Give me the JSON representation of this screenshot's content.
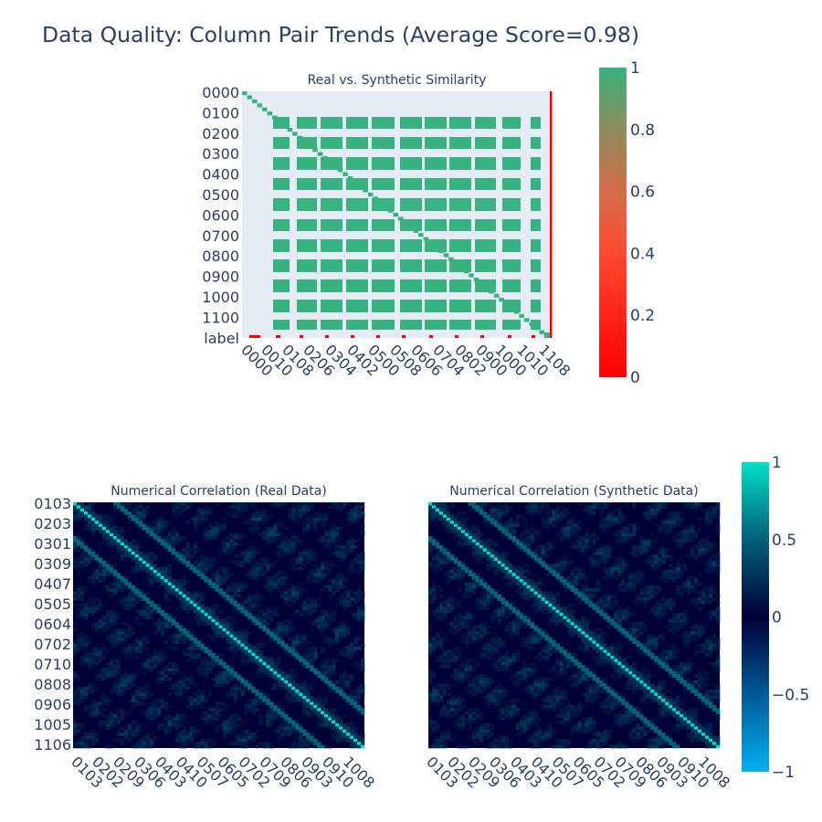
{
  "title": "Data Quality: Column Pair Trends (Average Score=0.98)",
  "colors": {
    "background": "#ffffff",
    "panel_bg": "#e5ecf6",
    "similarity_high": "#36b37e",
    "similarity_low": "#ff0000",
    "corr_low": "#00b0f0",
    "corr_mid": "#000036",
    "corr_high": "#00e0c8"
  },
  "chart_data": [
    {
      "type": "heatmap",
      "title": "Real vs. Synthetic Similarity",
      "y_tick_labels": [
        "0000",
        "0100",
        "0200",
        "0300",
        "0400",
        "0500",
        "0600",
        "0700",
        "0800",
        "0900",
        "1000",
        "1100",
        "label"
      ],
      "x_tick_labels": [
        "0000",
        "0010",
        "0108",
        "0206",
        "0304",
        "0402",
        "0500",
        "0508",
        "0606",
        "0704",
        "0802",
        "0900",
        "1000",
        "1010",
        "1108"
      ],
      "colorbar": {
        "range": [
          0,
          1
        ],
        "ticks": [
          "0",
          "0.2",
          "0.4",
          "0.6",
          "0.8",
          "1"
        ],
        "colorscale": "red-to-green"
      },
      "value_description": "block of cells with similarity 1 between column groups; diagonal 1; label row/column mostly 0",
      "block_value": 1,
      "label_value": 0
    },
    {
      "type": "heatmap",
      "title": "Numerical Correlation (Real Data)",
      "y_tick_labels": [
        "0103",
        "0203",
        "0301",
        "0309",
        "0407",
        "0505",
        "0604",
        "0702",
        "0710",
        "0808",
        "0906",
        "1005",
        "1106"
      ],
      "x_tick_labels": [
        "0103",
        "0202",
        "0209",
        "0306",
        "0403",
        "0410",
        "0507",
        "0605",
        "0702",
        "0709",
        "0806",
        "0903",
        "0910",
        "1008"
      ],
      "diagonal_value": 1,
      "zlim": [
        -1,
        1
      ]
    },
    {
      "type": "heatmap",
      "title": "Numerical Correlation (Synthetic Data)",
      "y_tick_labels": [],
      "x_tick_labels": [
        "0103",
        "0202",
        "0209",
        "0306",
        "0403",
        "0410",
        "0507",
        "0605",
        "0702",
        "0709",
        "0806",
        "0903",
        "0910",
        "1008"
      ],
      "diagonal_value": 1,
      "zlim": [
        -1,
        1
      ],
      "colorbar": {
        "range": [
          -1,
          1
        ],
        "ticks": [
          "1",
          "0.5",
          "0",
          "−0.5",
          "−1"
        ]
      }
    }
  ]
}
